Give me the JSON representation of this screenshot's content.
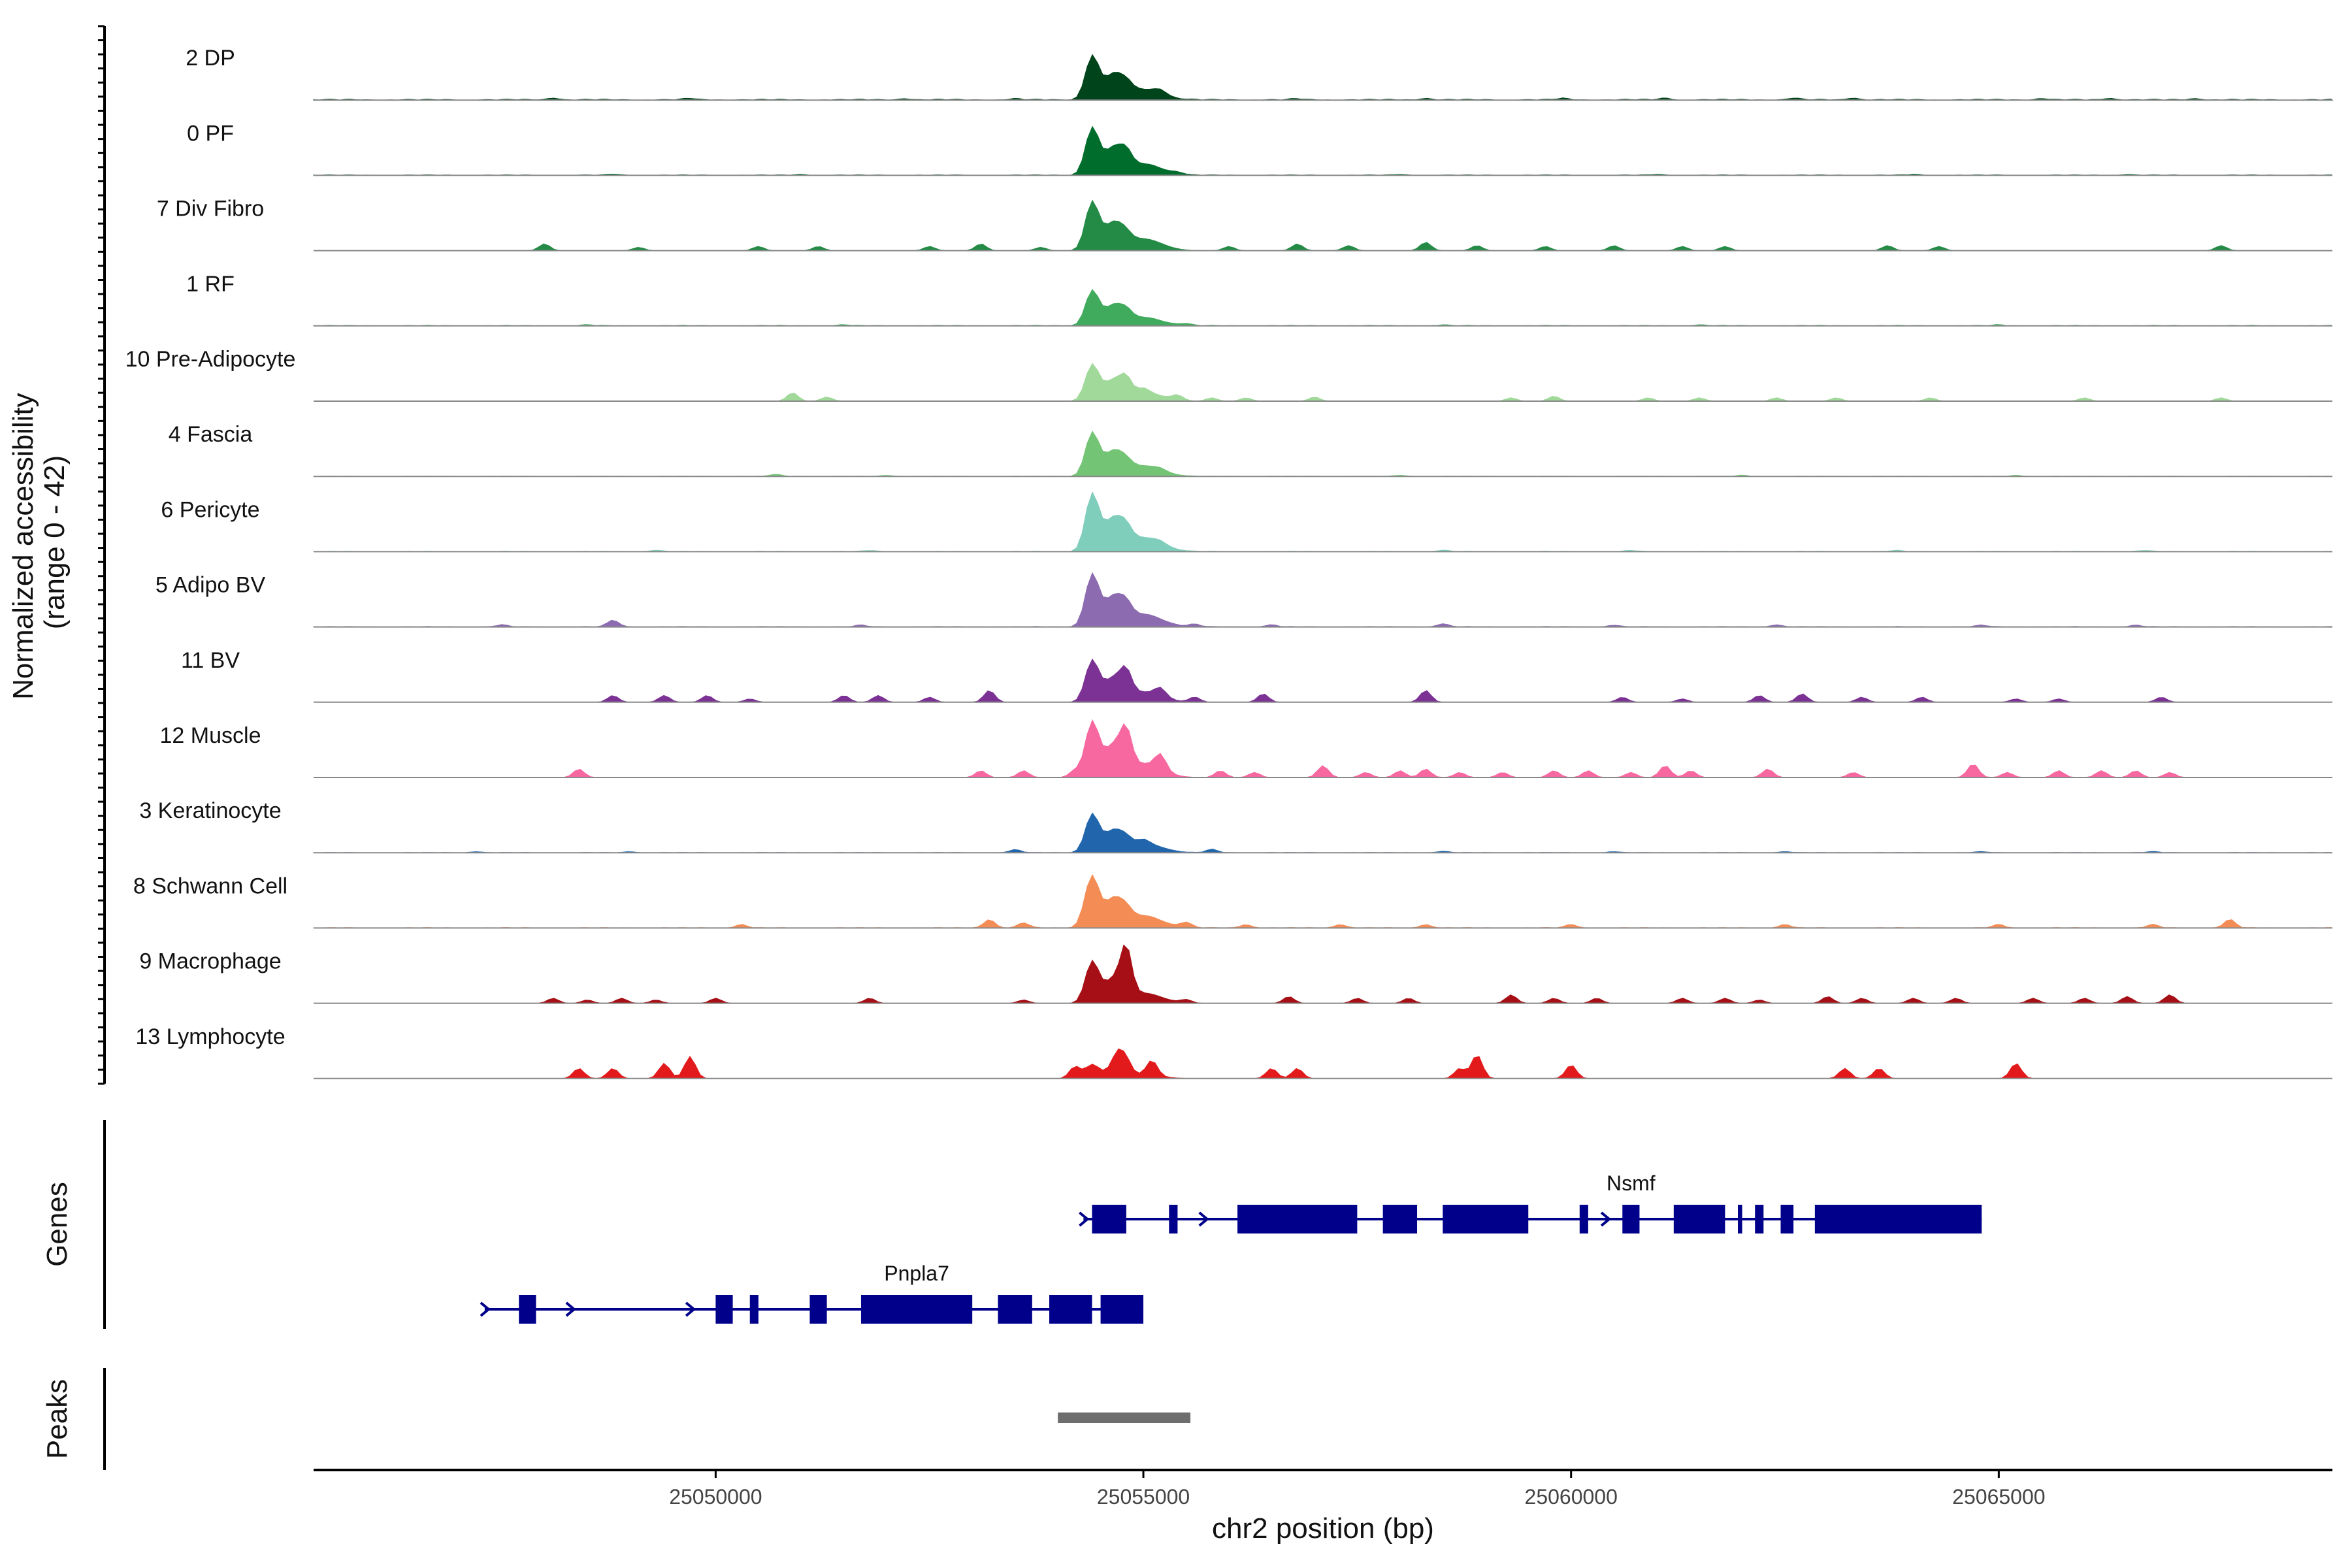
{
  "chart_data": {
    "type": "area",
    "ylabel_line1": "Normalized accessibility",
    "ylabel_line2": "(range 0 - 42)",
    "xlabel": "chr2 position (bp)",
    "xlim": [
      25045300,
      25068900
    ],
    "ylim": [
      0,
      42
    ],
    "x_ticks": [
      25050000,
      25055000,
      25060000,
      25065000
    ],
    "x_tick_labels": [
      "25050000",
      "25055000",
      "25060000",
      "25065000"
    ],
    "tracks": [
      {
        "label": "2 DP",
        "color": "#00441b",
        "peak_height": 25,
        "secondary": 4,
        "baseline": 0.6,
        "bumps": [
          [
            25048100,
            1.2
          ],
          [
            25049700,
            0.8
          ],
          [
            25052200,
            0.8
          ],
          [
            25053500,
            0.6
          ],
          [
            25055200,
            2.5
          ],
          [
            25056800,
            0.6
          ],
          [
            25058300,
            1.0
          ],
          [
            25059900,
            0.8
          ],
          [
            25061100,
            1.0
          ],
          [
            25062600,
            1.0
          ],
          [
            25063300,
            1.2
          ],
          [
            25065500,
            0.8
          ],
          [
            25066300,
            1.0
          ],
          [
            25067300,
            0.8
          ]
        ]
      },
      {
        "label": "0 PF",
        "color": "#006d2c",
        "peak_height": 27,
        "secondary": 7,
        "baseline": 0.4,
        "bumps": [
          [
            25048800,
            0.6
          ],
          [
            25051000,
            0.5
          ],
          [
            25055400,
            1.0
          ],
          [
            25058000,
            0.5
          ],
          [
            25061000,
            0.5
          ],
          [
            25064000,
            0.5
          ],
          [
            25066500,
            0.5
          ]
        ]
      },
      {
        "label": "7 Div Fibro",
        "color": "#238b45",
        "peak_height": 28,
        "secondary": 3,
        "baseline": 0,
        "bumps": [
          [
            25048000,
            4
          ],
          [
            25049100,
            2
          ],
          [
            25050500,
            2.5
          ],
          [
            25051200,
            2.5
          ],
          [
            25052500,
            2.5
          ],
          [
            25053100,
            4
          ],
          [
            25053800,
            2
          ],
          [
            25056000,
            2.5
          ],
          [
            25056800,
            4
          ],
          [
            25057400,
            3
          ],
          [
            25058300,
            5
          ],
          [
            25058900,
            3
          ],
          [
            25059700,
            2.5
          ],
          [
            25060500,
            3
          ],
          [
            25061300,
            2.5
          ],
          [
            25061800,
            2.5
          ],
          [
            25063700,
            3
          ],
          [
            25064300,
            2.5
          ],
          [
            25067600,
            3
          ]
        ]
      },
      {
        "label": "1 RF",
        "color": "#41ab5d",
        "peak_height": 20,
        "secondary": 4,
        "baseline": 0.4,
        "bumps": [
          [
            25048500,
            0.5
          ],
          [
            25051500,
            0.5
          ],
          [
            25055500,
            1.0
          ],
          [
            25058500,
            0.5
          ],
          [
            25061500,
            0.5
          ],
          [
            25065000,
            0.5
          ]
        ]
      },
      {
        "label": "10 Pre-Adipocyte",
        "color": "#a1d99b",
        "peak_height": 21,
        "secondary": 8,
        "baseline": 0,
        "bumps": [
          [
            25050900,
            5
          ],
          [
            25051300,
            2.5
          ],
          [
            25055000,
            2.5
          ],
          [
            25055400,
            3
          ],
          [
            25055800,
            2
          ],
          [
            25056200,
            2
          ],
          [
            25057000,
            2.5
          ],
          [
            25059300,
            2
          ],
          [
            25059800,
            3
          ],
          [
            25060900,
            2
          ],
          [
            25061500,
            2
          ],
          [
            25062400,
            2
          ],
          [
            25063100,
            2
          ],
          [
            25064200,
            2
          ],
          [
            25066000,
            2
          ],
          [
            25067600,
            2
          ]
        ]
      },
      {
        "label": "4 Fascia",
        "color": "#74c476",
        "peak_height": 25,
        "secondary": 3,
        "baseline": 0.2,
        "bumps": [
          [
            25050700,
            1.2
          ],
          [
            25052000,
            0.6
          ],
          [
            25055200,
            1.2
          ],
          [
            25058000,
            0.6
          ],
          [
            25062000,
            0.6
          ],
          [
            25065200,
            0.6
          ]
        ]
      },
      {
        "label": "6 Pericyte",
        "color": "#7fcdbb",
        "peak_height": 33,
        "secondary": 6,
        "baseline": 0.3,
        "bumps": [
          [
            25049300,
            0.8
          ],
          [
            25051800,
            0.6
          ],
          [
            25055200,
            1.5
          ],
          [
            25058500,
            0.8
          ],
          [
            25060700,
            0.6
          ],
          [
            25063800,
            0.6
          ],
          [
            25066700,
            0.6
          ]
        ]
      },
      {
        "label": "5 Adipo BV",
        "color": "#8c6bb1",
        "peak_height": 30,
        "secondary": 6,
        "baseline": 0.3,
        "bumps": [
          [
            25047500,
            1.2
          ],
          [
            25048800,
            4
          ],
          [
            25051700,
            1.0
          ],
          [
            25055600,
            1.5
          ],
          [
            25056500,
            1.2
          ],
          [
            25058500,
            1.8
          ],
          [
            25060500,
            1.0
          ],
          [
            25062400,
            1.2
          ],
          [
            25064800,
            1.0
          ],
          [
            25066600,
            1.0
          ]
        ]
      },
      {
        "label": "11 BV",
        "color": "#7b3294",
        "peak_height": 24,
        "secondary": 12,
        "baseline": 0,
        "bumps": [
          [
            25048800,
            4
          ],
          [
            25049400,
            4
          ],
          [
            25049900,
            4
          ],
          [
            25050400,
            2
          ],
          [
            25051500,
            4
          ],
          [
            25051900,
            4
          ],
          [
            25052500,
            3
          ],
          [
            25053200,
            7
          ],
          [
            25055200,
            5
          ],
          [
            25055600,
            3
          ],
          [
            25056400,
            5
          ],
          [
            25058300,
            7
          ],
          [
            25060600,
            3
          ],
          [
            25061300,
            2
          ],
          [
            25062200,
            4
          ],
          [
            25062700,
            5
          ],
          [
            25063400,
            3
          ],
          [
            25064100,
            3
          ],
          [
            25065200,
            2
          ],
          [
            25065700,
            2
          ],
          [
            25066900,
            3
          ]
        ]
      },
      {
        "label": "12 Muscle",
        "color": "#f768a1",
        "peak_height": 32,
        "secondary": 19,
        "baseline": 0,
        "bumps": [
          [
            25048400,
            5
          ],
          [
            25053100,
            4
          ],
          [
            25053600,
            4
          ],
          [
            25054200,
            4
          ],
          [
            25055200,
            9
          ],
          [
            25055900,
            4
          ],
          [
            25056300,
            3
          ],
          [
            25057100,
            7
          ],
          [
            25057600,
            3
          ],
          [
            25058000,
            4
          ],
          [
            25058300,
            5
          ],
          [
            25058700,
            3
          ],
          [
            25059200,
            3
          ],
          [
            25059800,
            4
          ],
          [
            25060200,
            4
          ],
          [
            25060700,
            3
          ],
          [
            25061100,
            7
          ],
          [
            25061400,
            4
          ],
          [
            25062300,
            5
          ],
          [
            25063300,
            3
          ],
          [
            25064700,
            8
          ],
          [
            25065100,
            3
          ],
          [
            25065700,
            4
          ],
          [
            25066200,
            4
          ],
          [
            25066600,
            4
          ],
          [
            25067000,
            3
          ]
        ]
      },
      {
        "label": "3 Keratinocyte",
        "color": "#2166ac",
        "peak_height": 22,
        "secondary": 3,
        "baseline": 0.2,
        "bumps": [
          [
            25047200,
            0.6
          ],
          [
            25049000,
            0.6
          ],
          [
            25053500,
            1.8
          ],
          [
            25055000,
            2.5
          ],
          [
            25055800,
            2.0
          ],
          [
            25058500,
            0.8
          ],
          [
            25060500,
            0.6
          ],
          [
            25062500,
            0.6
          ],
          [
            25064800,
            0.6
          ],
          [
            25066800,
            0.6
          ]
        ]
      },
      {
        "label": "8 Schwann Cell",
        "color": "#f48c56",
        "peak_height": 29,
        "secondary": 4,
        "baseline": 0.3,
        "bumps": [
          [
            25050300,
            2
          ],
          [
            25053200,
            5
          ],
          [
            25053600,
            3
          ],
          [
            25054300,
            2
          ],
          [
            25055500,
            3
          ],
          [
            25056200,
            2
          ],
          [
            25057300,
            2
          ],
          [
            25058300,
            2
          ],
          [
            25060000,
            2
          ],
          [
            25062500,
            2
          ],
          [
            25065000,
            2
          ],
          [
            25066800,
            2
          ],
          [
            25067700,
            5
          ]
        ]
      },
      {
        "label": "9 Macrophage",
        "color": "#a50f15",
        "peak_height": 24,
        "secondary": 24,
        "baseline": 0,
        "bumps": [
          [
            25048100,
            3
          ],
          [
            25048500,
            2
          ],
          [
            25048900,
            3
          ],
          [
            25049300,
            2
          ],
          [
            25050000,
            3
          ],
          [
            25051800,
            3
          ],
          [
            25053600,
            2
          ],
          [
            25054800,
            2
          ],
          [
            25055500,
            2
          ],
          [
            25056700,
            4
          ],
          [
            25057500,
            3
          ],
          [
            25058100,
            3
          ],
          [
            25059300,
            5
          ],
          [
            25059800,
            3
          ],
          [
            25060300,
            3
          ],
          [
            25061300,
            3
          ],
          [
            25061800,
            3
          ],
          [
            25062200,
            2
          ],
          [
            25063000,
            4
          ],
          [
            25063400,
            3
          ],
          [
            25064000,
            3
          ],
          [
            25064500,
            3
          ],
          [
            25065400,
            3
          ],
          [
            25066000,
            3
          ],
          [
            25066500,
            4
          ],
          [
            25067000,
            5
          ]
        ]
      },
      {
        "label": "13 Lymphocyte",
        "color": "#e31a1c",
        "peak_height": 8,
        "secondary": 8,
        "baseline": 0,
        "bumps": [
          [
            25048400,
            6
          ],
          [
            25048800,
            6
          ],
          [
            25049400,
            9
          ],
          [
            25049700,
            13
          ],
          [
            25054200,
            7
          ],
          [
            25054700,
            10
          ],
          [
            25055100,
            9
          ],
          [
            25056500,
            6
          ],
          [
            25056800,
            6
          ],
          [
            25058700,
            6
          ],
          [
            25058900,
            14
          ],
          [
            25060000,
            8
          ],
          [
            25063200,
            6
          ],
          [
            25063600,
            6
          ],
          [
            25065200,
            9
          ]
        ]
      }
    ],
    "genes_label": "Genes",
    "peaks_label": "Peaks",
    "genes": [
      {
        "name": "Nsmf",
        "color": "#00008b",
        "start": 25054300,
        "end": 25062900,
        "exons": [
          [
            25054400,
            25054800
          ],
          [
            25055300,
            25055400
          ],
          [
            25056100,
            25057500
          ],
          [
            25057800,
            25058200
          ],
          [
            25058500,
            25059500
          ],
          [
            25060100,
            25060200
          ],
          [
            25060600,
            25060800
          ],
          [
            25061200,
            25061800
          ],
          [
            25061950,
            25062000
          ],
          [
            25062150,
            25062250
          ],
          [
            25062450,
            25062600
          ],
          [
            25062850,
            25064800
          ]
        ],
        "arrows": [
          25054300,
          25055700,
          25060400
        ]
      },
      {
        "name": "Pnpla7",
        "color": "#00008b",
        "start": 25047300,
        "end": 25054000,
        "exons": [
          [
            25047700,
            25047900
          ],
          [
            25050000,
            25050200
          ],
          [
            25050400,
            25050500
          ],
          [
            25051100,
            25051300
          ],
          [
            25051700,
            25053000
          ],
          [
            25053300,
            25053700
          ],
          [
            25053900,
            25054400
          ],
          [
            25054500,
            25055000
          ]
        ],
        "arrows": [
          25047300,
          25048300,
          25049700
        ]
      }
    ],
    "peaks": [
      {
        "start": 25054000,
        "end": 25055550,
        "color": "#6e6e6e"
      }
    ]
  }
}
